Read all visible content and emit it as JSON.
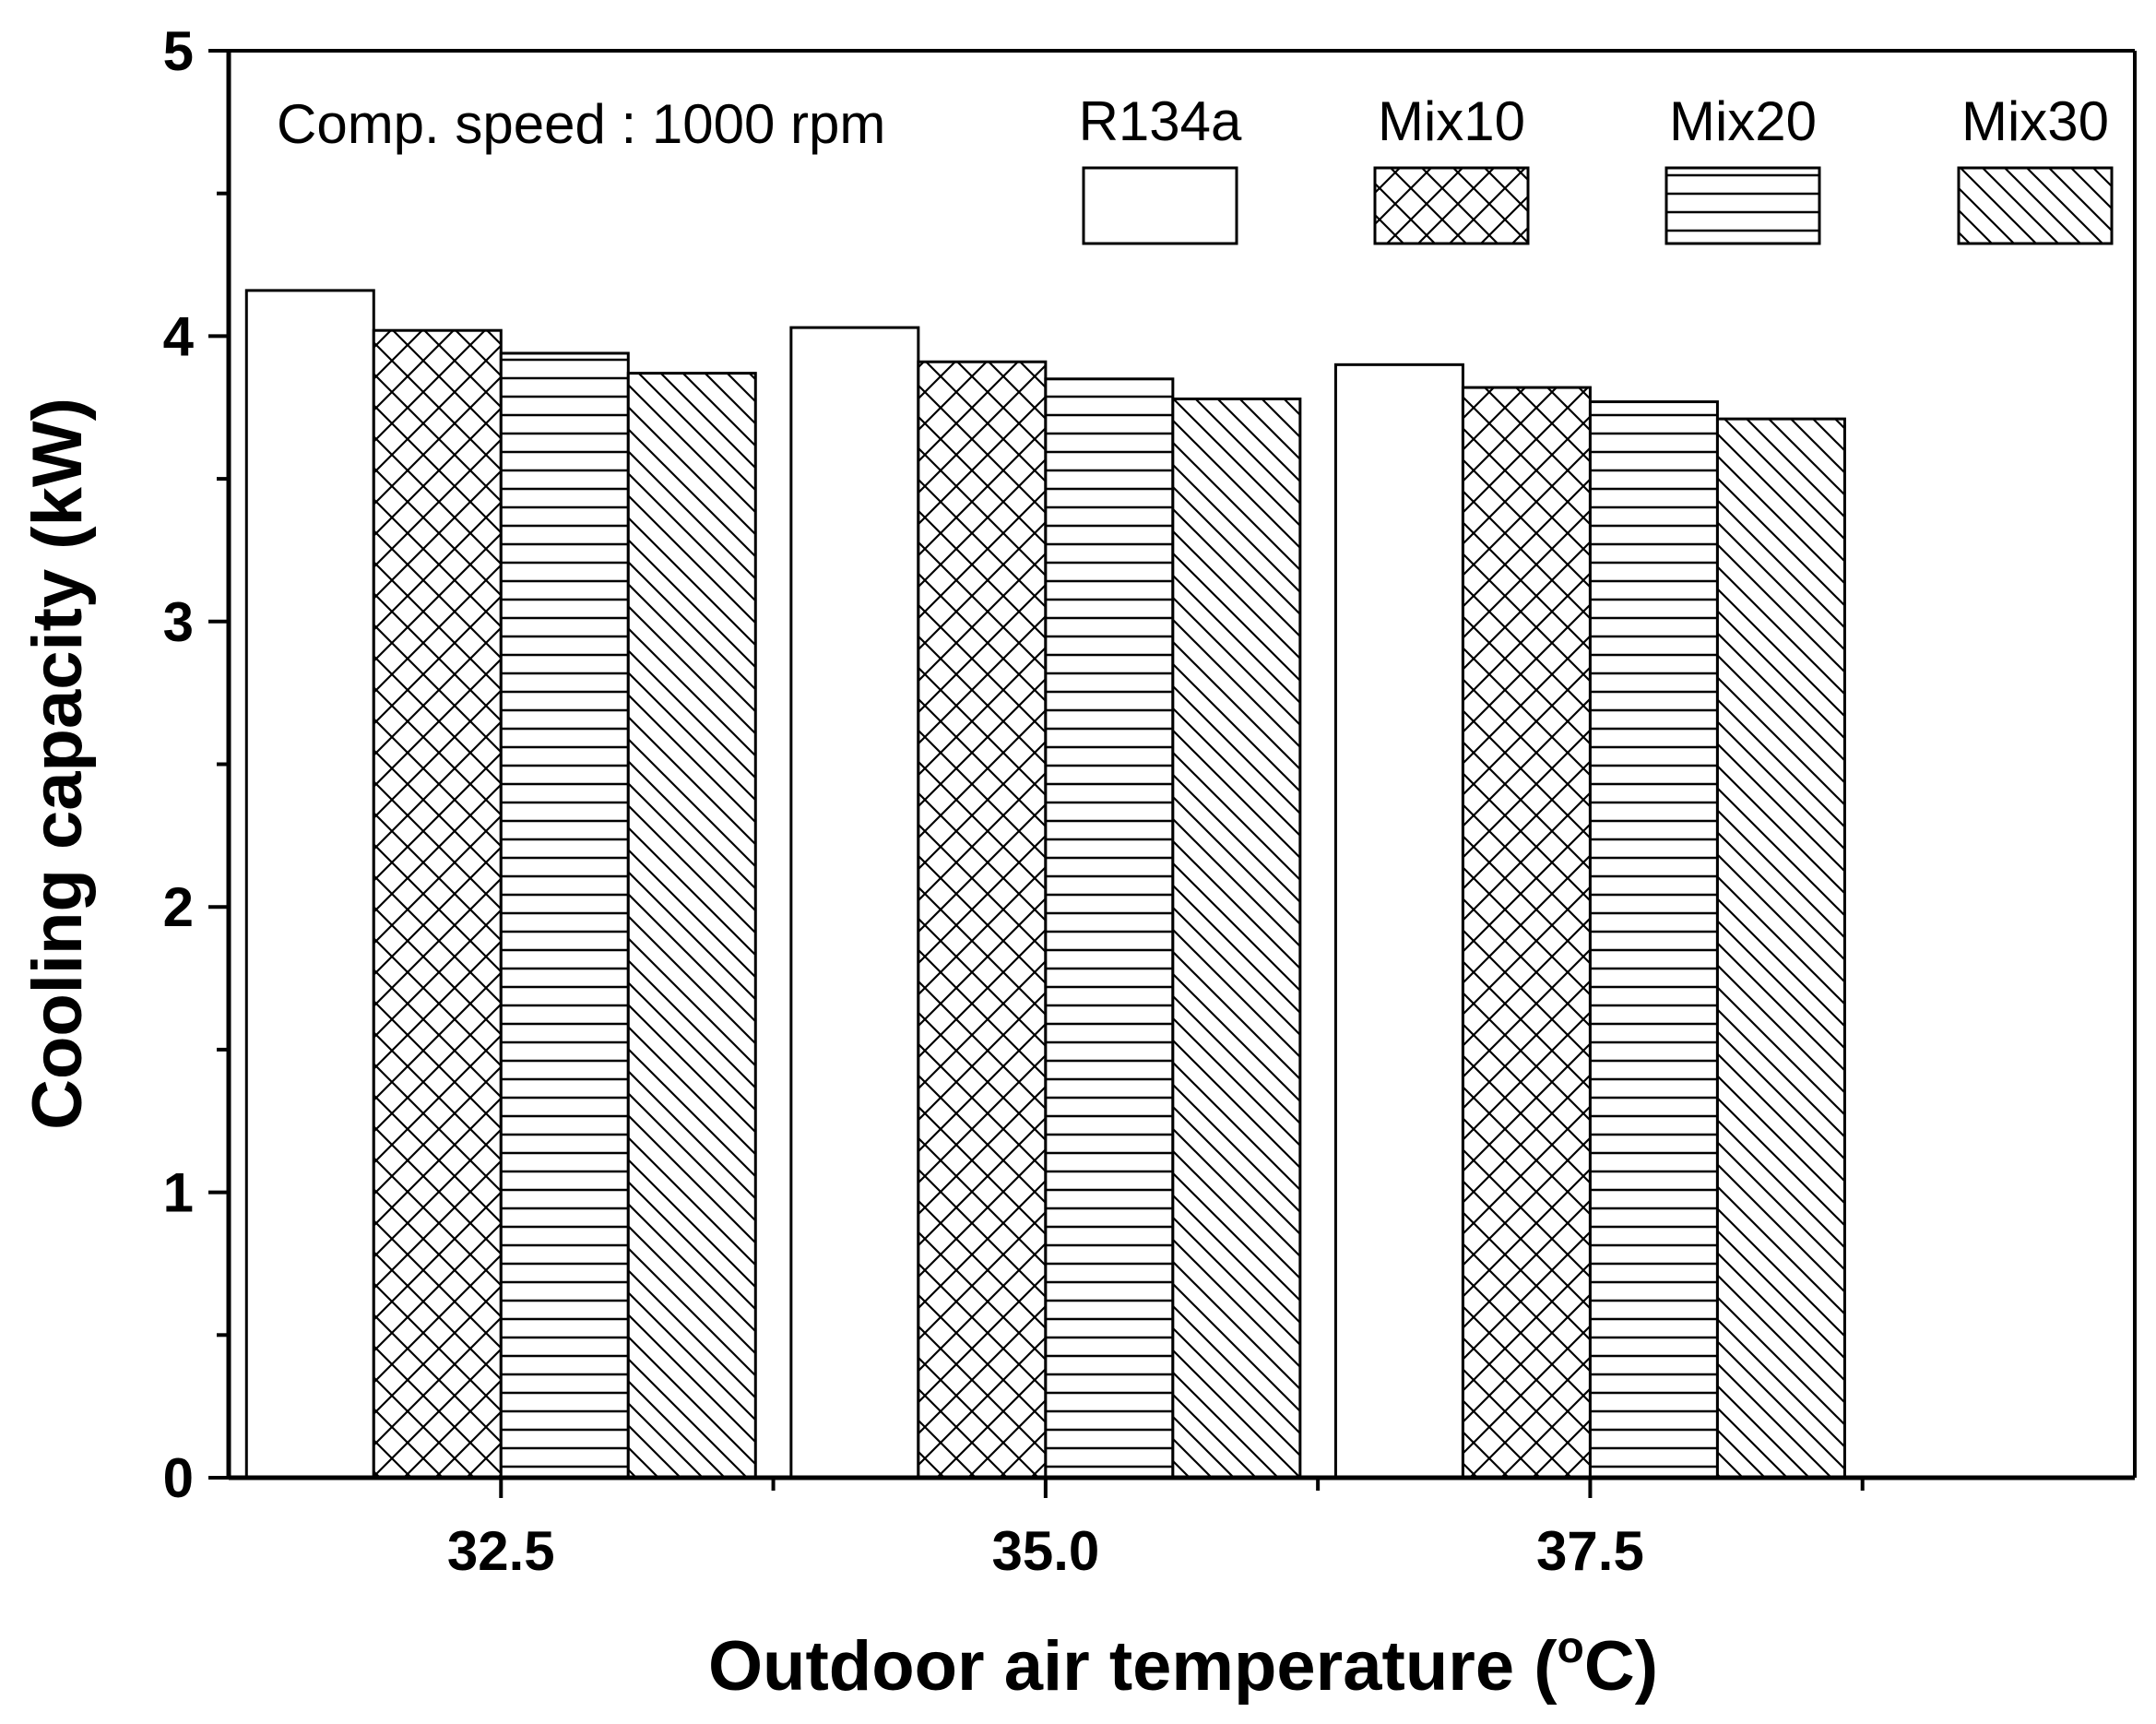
{
  "chart_data": {
    "type": "bar",
    "title": "",
    "annotation": "Comp. speed : 1000 rpm",
    "xlabel_main": "Outdoor air temperature (",
    "xlabel_deg": "o",
    "xlabel_unit": "C)",
    "ylabel": "Cooling capacity (kW)",
    "categories": [
      "32.5",
      "35.0",
      "37.5"
    ],
    "series": [
      {
        "name": "R134a",
        "pattern": "blank",
        "values": [
          4.16,
          4.03,
          3.9
        ]
      },
      {
        "name": "Mix10",
        "pattern": "crosshatch",
        "values": [
          4.02,
          3.91,
          3.82
        ]
      },
      {
        "name": "Mix20",
        "pattern": "horizontal",
        "values": [
          3.94,
          3.85,
          3.77
        ]
      },
      {
        "name": "Mix30",
        "pattern": "diagonal",
        "values": [
          3.87,
          3.78,
          3.71
        ]
      }
    ],
    "ylim": [
      0,
      5
    ],
    "yticks": [
      "0",
      "1",
      "2",
      "3",
      "4",
      "5"
    ],
    "grid": false,
    "legend_position": "top-right"
  }
}
